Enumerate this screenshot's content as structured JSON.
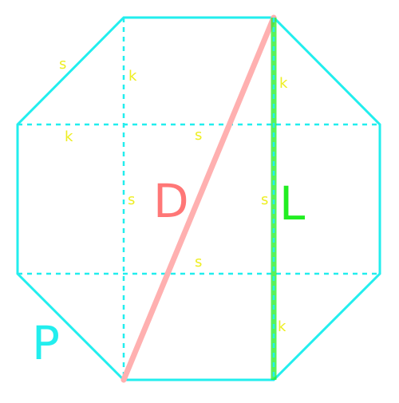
{
  "colors": {
    "outline": "#22EEEE",
    "small_label": "#EEEE22",
    "diagonal": "#FFB0B0",
    "diagonal_label": "#FF7777",
    "vertical_line": "#22EE22",
    "vertical_label": "#22EE22",
    "perimeter_label": "#22EEEE"
  },
  "labels": {
    "diagonal": "D",
    "vertical": "L",
    "perimeter": "P",
    "side": "s",
    "corner": "k"
  }
}
